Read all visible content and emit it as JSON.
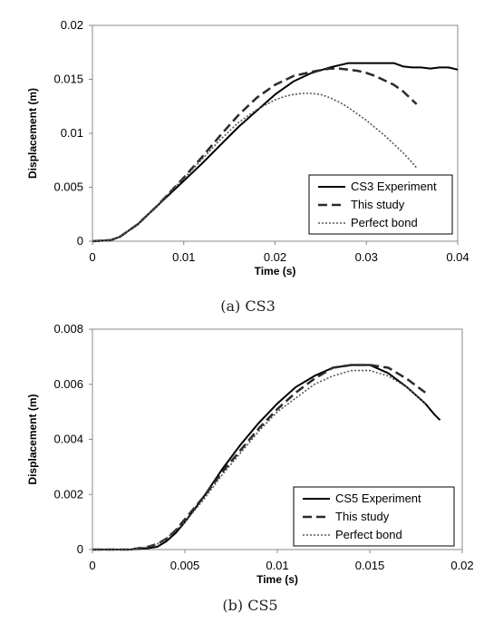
{
  "chart_data": [
    {
      "type": "line",
      "caption": "(a) CS3",
      "xlabel": "Time (s)",
      "ylabel": "Displacement (m)",
      "xlim": [
        0,
        0.04
      ],
      "ylim": [
        0,
        0.02
      ],
      "x_ticks": [
        "0",
        "0.01",
        "0.02",
        "0.03",
        "0.04"
      ],
      "y_ticks": [
        "0",
        "0.005",
        "0.01",
        "0.015",
        "0.02"
      ],
      "x_tick_values": [
        0,
        0.01,
        0.02,
        0.03,
        0.04
      ],
      "y_tick_values": [
        0,
        0.005,
        0.01,
        0.015,
        0.02
      ],
      "grid": false,
      "legend_position": "bottom-right",
      "series": [
        {
          "name": "CS3 Experiment",
          "style": "solid",
          "x": [
            0,
            0.002,
            0.003,
            0.004,
            0.005,
            0.006,
            0.007,
            0.008,
            0.009,
            0.01,
            0.012,
            0.014,
            0.016,
            0.018,
            0.02,
            0.022,
            0.024,
            0.026,
            0.0275,
            0.028,
            0.03,
            0.032,
            0.033,
            0.034,
            0.035,
            0.036,
            0.037,
            0.038,
            0.039,
            0.04
          ],
          "y": [
            0,
            0.0001,
            0.0004,
            0.001,
            0.0016,
            0.0024,
            0.0032,
            0.004,
            0.0048,
            0.0056,
            0.0072,
            0.0089,
            0.0106,
            0.0121,
            0.0136,
            0.0148,
            0.0156,
            0.0161,
            0.0164,
            0.0165,
            0.0165,
            0.0165,
            0.0165,
            0.0162,
            0.0161,
            0.0161,
            0.016,
            0.0161,
            0.0161,
            0.0159
          ]
        },
        {
          "name": "This study",
          "style": "dashed",
          "x": [
            0,
            0.002,
            0.003,
            0.004,
            0.005,
            0.006,
            0.007,
            0.008,
            0.009,
            0.01,
            0.012,
            0.014,
            0.016,
            0.018,
            0.02,
            0.022,
            0.024,
            0.026,
            0.027,
            0.028,
            0.029,
            0.03,
            0.031,
            0.032,
            0.033,
            0.034,
            0.035,
            0.0355
          ],
          "y": [
            0,
            0.0001,
            0.0004,
            0.001,
            0.0016,
            0.0024,
            0.0032,
            0.0041,
            0.005,
            0.0059,
            0.0078,
            0.0098,
            0.0117,
            0.0133,
            0.0145,
            0.0153,
            0.0157,
            0.016,
            0.016,
            0.0159,
            0.0158,
            0.0156,
            0.0153,
            0.0149,
            0.0145,
            0.0139,
            0.0131,
            0.0127
          ]
        },
        {
          "name": "Perfect bond",
          "style": "dotted",
          "x": [
            0,
            0.002,
            0.003,
            0.004,
            0.005,
            0.006,
            0.007,
            0.008,
            0.009,
            0.01,
            0.012,
            0.014,
            0.016,
            0.018,
            0.02,
            0.021,
            0.022,
            0.023,
            0.024,
            0.025,
            0.026,
            0.027,
            0.028,
            0.029,
            0.03,
            0.031,
            0.032,
            0.033,
            0.034,
            0.035,
            0.0355
          ],
          "y": [
            0,
            0.0001,
            0.0004,
            0.001,
            0.0016,
            0.0024,
            0.0032,
            0.0041,
            0.005,
            0.0058,
            0.0076,
            0.0094,
            0.011,
            0.0122,
            0.0131,
            0.0134,
            0.0136,
            0.0137,
            0.0137,
            0.0136,
            0.0133,
            0.0129,
            0.0124,
            0.0118,
            0.0112,
            0.0105,
            0.0098,
            0.009,
            0.0082,
            0.0073,
            0.0068
          ]
        }
      ]
    },
    {
      "type": "line",
      "caption": "(b) CS5",
      "xlabel": "Time (s)",
      "ylabel": "Displacement (m)",
      "xlim": [
        0,
        0.02
      ],
      "ylim": [
        0,
        0.008
      ],
      "x_ticks": [
        "0",
        "0.005",
        "0.01",
        "0.015",
        "0.02"
      ],
      "y_ticks": [
        "0",
        "0.002",
        "0.004",
        "0.006",
        "0.008"
      ],
      "x_tick_values": [
        0,
        0.005,
        0.01,
        0.015,
        0.02
      ],
      "y_tick_values": [
        0,
        0.002,
        0.004,
        0.006,
        0.008
      ],
      "grid": false,
      "legend_position": "bottom-right",
      "series": [
        {
          "name": "CS5 Experiment",
          "style": "solid",
          "x": [
            0,
            0.002,
            0.003,
            0.0035,
            0.004,
            0.0045,
            0.005,
            0.006,
            0.007,
            0.008,
            0.009,
            0.01,
            0.011,
            0.012,
            0.013,
            0.014,
            0.015,
            0.016,
            0.017,
            0.018,
            0.0185,
            0.0188
          ],
          "y": [
            0,
            0,
            5e-05,
            0.0001,
            0.0003,
            0.0006,
            0.001,
            0.0019,
            0.0029,
            0.0038,
            0.0046,
            0.0053,
            0.0059,
            0.0063,
            0.0066,
            0.0067,
            0.0067,
            0.0064,
            0.0059,
            0.0053,
            0.0049,
            0.0047
          ]
        },
        {
          "name": "This study",
          "style": "dashed",
          "x": [
            0,
            0.002,
            0.003,
            0.0035,
            0.004,
            0.0045,
            0.005,
            0.006,
            0.007,
            0.008,
            0.009,
            0.01,
            0.011,
            0.012,
            0.013,
            0.014,
            0.015,
            0.016,
            0.017,
            0.018
          ],
          "y": [
            0,
            0,
            0.0001,
            0.0002,
            0.0004,
            0.0007,
            0.0011,
            0.0019,
            0.0028,
            0.0036,
            0.0044,
            0.0051,
            0.0057,
            0.0062,
            0.0066,
            0.0067,
            0.0067,
            0.0066,
            0.0062,
            0.0057
          ]
        },
        {
          "name": "Perfect bond",
          "style": "dotted",
          "x": [
            0,
            0.002,
            0.003,
            0.0035,
            0.004,
            0.0045,
            0.005,
            0.006,
            0.007,
            0.008,
            0.009,
            0.01,
            0.011,
            0.012,
            0.013,
            0.014,
            0.015,
            0.016,
            0.017,
            0.018
          ],
          "y": [
            0,
            0,
            0.0001,
            0.0002,
            0.0004,
            0.0007,
            0.001,
            0.0018,
            0.0027,
            0.0035,
            0.0043,
            0.005,
            0.0055,
            0.006,
            0.0063,
            0.0065,
            0.0065,
            0.0063,
            0.0059,
            0.0053
          ]
        }
      ]
    }
  ]
}
